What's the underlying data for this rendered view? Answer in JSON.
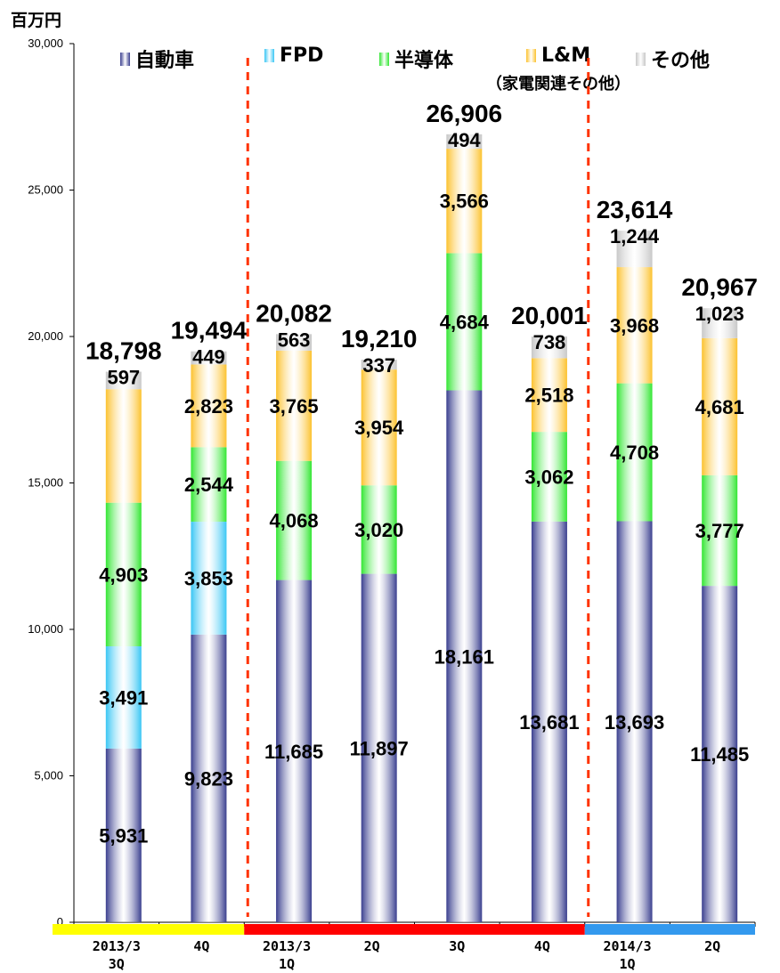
{
  "unit": "百万円",
  "legend": [
    {
      "label": "自動車",
      "color": "#3a3f8f"
    },
    {
      "label": "FPD",
      "color": "#39c6f4"
    },
    {
      "label": "半導体",
      "color": "#33e633"
    },
    {
      "label": "L&M",
      "color": "#fcc22f"
    },
    {
      "label": "その他",
      "color": "#c8c8c8"
    }
  ],
  "legend_note": "（家電関連その他）",
  "chart_data": {
    "type": "bar",
    "stacked": true,
    "ylim": [
      0,
      30000
    ],
    "yticks": [
      "0",
      "5,000",
      "10,000",
      "15,000",
      "20,000",
      "25,000",
      "30,000"
    ],
    "categories": [
      "2013/3\n3Q",
      "4Q",
      "2013/3\n1Q",
      "2Q",
      "3Q",
      "4Q",
      "2014/3\n1Q",
      "2Q"
    ],
    "series": [
      {
        "name": "自動車",
        "values": [
          5931,
          9823,
          11685,
          11897,
          18161,
          13681,
          13693,
          11485
        ],
        "labels": [
          "5,931",
          "9,823",
          "11,685",
          "11,897",
          "18,161",
          "13,681",
          "13,693",
          "11,485"
        ]
      },
      {
        "name": "FPD",
        "values": [
          3491,
          3853,
          0,
          0,
          0,
          0,
          0,
          0
        ],
        "labels": [
          "3,491",
          "3,853",
          "",
          "",
          "",
          "",
          "",
          ""
        ]
      },
      {
        "name": "半導体",
        "values": [
          4903,
          2544,
          4068,
          3020,
          4684,
          3062,
          4708,
          3777
        ],
        "labels": [
          "4,903",
          "2,544",
          "4,068",
          "3,020",
          "4,684",
          "3,062",
          "4,708",
          "3,777"
        ]
      },
      {
        "name": "L&M",
        "values": [
          3876,
          2823,
          3765,
          3954,
          3566,
          2518,
          3968,
          4681
        ],
        "labels": [
          "",
          "2,823",
          "3,765",
          "3,954",
          "3,566",
          "2,518",
          "3,968",
          "4,681"
        ]
      },
      {
        "name": "その他",
        "values": [
          597,
          449,
          563,
          337,
          494,
          738,
          1244,
          1023
        ],
        "labels": [
          "597",
          "449",
          "563",
          "337",
          "494",
          "738",
          "1,244",
          "1,023"
        ]
      }
    ],
    "totals": [
      18798,
      19494,
      20082,
      19210,
      26906,
      20001,
      23614,
      20967
    ],
    "total_labels": [
      "18,798",
      "19,494",
      "20,082",
      "19,210",
      "26,906",
      "20,001",
      "23,614",
      "20,967"
    ],
    "period_bands": [
      {
        "from": 0,
        "to": 1,
        "color": "#ffff00"
      },
      {
        "from": 2,
        "to": 5,
        "color": "#ff0000"
      },
      {
        "from": 6,
        "to": 7,
        "color": "#3399ee"
      }
    ],
    "divider_after": [
      1,
      5
    ],
    "divider_color": "#ff3300",
    "legend_placement": "top",
    "grid": false
  }
}
